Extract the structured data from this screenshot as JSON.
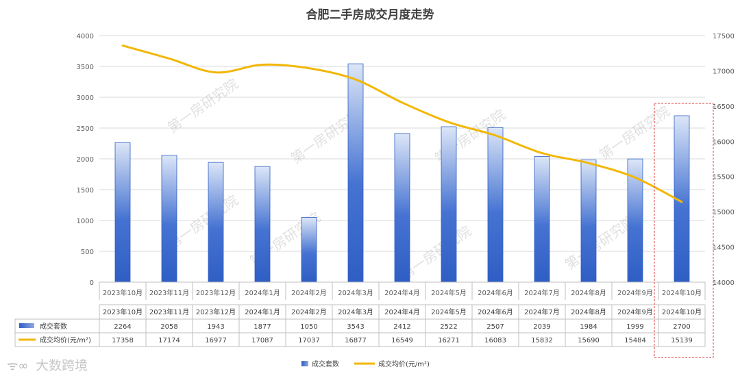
{
  "chart_data": {
    "type": "bar",
    "title": "合肥二手房成交月度走势",
    "categories": [
      "2023年10月",
      "2023年11月",
      "2023年12月",
      "2024年1月",
      "2024年2月",
      "2024年3月",
      "2024年4月",
      "2024年5月",
      "2024年6月",
      "2024年7月",
      "2024年8月",
      "2024年9月",
      "2024年10月"
    ],
    "series": [
      {
        "name": "成交套数",
        "type": "bar",
        "axis": "left",
        "values": [
          2264,
          2058,
          1943,
          1877,
          1050,
          3543,
          2412,
          2522,
          2507,
          2039,
          1984,
          1999,
          2700
        ]
      },
      {
        "name": "成交均价(元/m²)",
        "type": "line",
        "axis": "right",
        "values": [
          17358,
          17174,
          16977,
          17087,
          17037,
          16877,
          16549,
          16271,
          16083,
          15832,
          15690,
          15484,
          15139
        ]
      }
    ],
    "y_left": {
      "min": 0,
      "max": 4000,
      "ticks": [
        0,
        500,
        1000,
        1500,
        2000,
        2500,
        3000,
        3500,
        4000
      ]
    },
    "y_right": {
      "min": 14000,
      "max": 17500,
      "ticks": [
        14000,
        14500,
        15000,
        15500,
        16000,
        16500,
        17000,
        17500
      ]
    },
    "grid": true,
    "legend": "bottom",
    "highlight": "2024年10月",
    "data_table": true
  },
  "colors": {
    "bar_dark": "#2f5ec4",
    "bar_light": "#dce6f7",
    "line": "#f2b705",
    "highlight": "#e04040"
  },
  "watermark": "第一房研究院",
  "brand": "大数跨境"
}
